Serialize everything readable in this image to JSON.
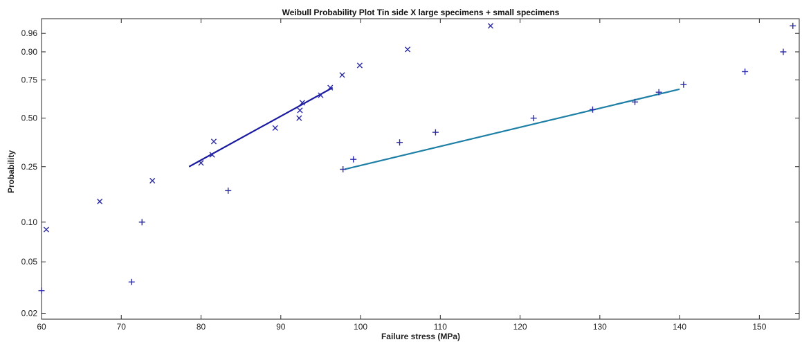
{
  "chart_data": {
    "type": "scatter",
    "title": "Weibull Probability Plot Tin side X large specimens  + small specimens",
    "xlabel": "Failure stress (MPa)",
    "ylabel": "Probability",
    "xlim": [
      60,
      155
    ],
    "yscale": "weibull",
    "ylim": [
      0.018,
      0.985
    ],
    "grid": false,
    "x_ticks": [
      60,
      70,
      80,
      90,
      100,
      110,
      120,
      130,
      140,
      150
    ],
    "y_ticks": [
      0.02,
      0.05,
      0.1,
      0.25,
      0.5,
      0.75,
      0.9,
      0.96
    ],
    "x_tick_labels": [
      "60",
      "70",
      "80",
      "90",
      "100",
      "110",
      "120",
      "130",
      "140",
      "150"
    ],
    "y_tick_labels": [
      "0.02",
      "0.05",
      "0.10",
      "0.25",
      "0.50",
      "0.75",
      "0.90",
      "0.96"
    ],
    "series": [
      {
        "marker": "x",
        "color": "#2a2aa6",
        "points": [
          [
            60.6,
            0.088
          ],
          [
            67.3,
            0.142
          ],
          [
            73.9,
            0.2
          ],
          [
            80.0,
            0.265
          ],
          [
            81.4,
            0.3
          ],
          [
            81.6,
            0.365
          ],
          [
            89.3,
            0.44
          ],
          [
            92.3,
            0.5
          ],
          [
            92.4,
            0.55
          ],
          [
            92.7,
            0.6
          ],
          [
            95.0,
            0.65
          ],
          [
            96.2,
            0.7
          ],
          [
            97.7,
            0.78
          ],
          [
            99.9,
            0.835
          ],
          [
            105.9,
            0.91
          ],
          [
            116.3,
            0.975
          ]
        ],
        "fit": {
          "color": "#1a1aa0",
          "x": [
            78.5,
            96.5
          ],
          "y": [
            0.25,
            0.7
          ]
        }
      },
      {
        "marker": "+",
        "color": "#2a2aa6",
        "points": [
          [
            60.0,
            0.03
          ],
          [
            71.3,
            0.035
          ],
          [
            72.6,
            0.1
          ],
          [
            83.4,
            0.17
          ],
          [
            97.8,
            0.24
          ],
          [
            99.1,
            0.28
          ],
          [
            104.9,
            0.36
          ],
          [
            109.4,
            0.415
          ],
          [
            121.7,
            0.5
          ],
          [
            129.1,
            0.555
          ],
          [
            134.4,
            0.605
          ],
          [
            137.4,
            0.67
          ],
          [
            140.5,
            0.72
          ],
          [
            148.2,
            0.8
          ],
          [
            153.0,
            0.9
          ],
          [
            154.2,
            0.975
          ]
        ],
        "fit": {
          "color": "#1d7fa6",
          "x": [
            98.0,
            140.0
          ],
          "y": [
            0.24,
            0.69
          ]
        }
      }
    ]
  }
}
